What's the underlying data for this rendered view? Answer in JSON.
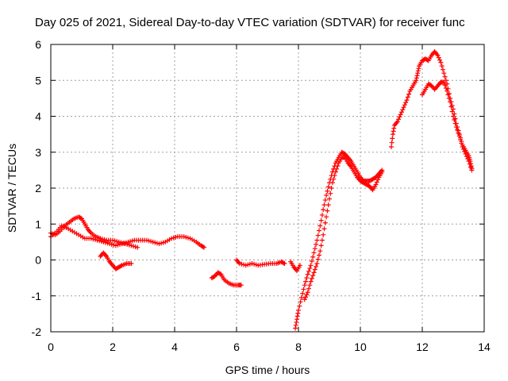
{
  "chart_data": {
    "type": "scatter",
    "title": "Day 025 of 2021, Sidereal Day-to-day VTEC variation (SDTVAR) for receiver func",
    "xlabel": "GPS time / hours",
    "ylabel": "SDTVAR / TECUs",
    "xlim": [
      0,
      14
    ],
    "ylim": [
      -2,
      6
    ],
    "x_ticks": [
      "0",
      "2",
      "4",
      "6",
      "8",
      "10",
      "12",
      "14"
    ],
    "y_ticks": [
      "-2",
      "-1",
      "0",
      "1",
      "2",
      "3",
      "4",
      "5",
      "6"
    ],
    "grid": true,
    "legend": "none",
    "marker": "plus",
    "color": "#ff0000",
    "segments": [
      [
        [
          0.0,
          0.75
        ],
        [
          0.15,
          0.7
        ],
        [
          0.3,
          0.8
        ],
        [
          0.45,
          0.95
        ],
        [
          0.6,
          1.05
        ],
        [
          0.75,
          1.15
        ],
        [
          0.9,
          1.2
        ],
        [
          1.0,
          1.15
        ],
        [
          1.1,
          1.0
        ],
        [
          1.2,
          0.85
        ],
        [
          1.3,
          0.75
        ],
        [
          1.45,
          0.65
        ],
        [
          1.6,
          0.6
        ],
        [
          1.8,
          0.55
        ],
        [
          2.0,
          0.55
        ],
        [
          2.2,
          0.5
        ],
        [
          2.4,
          0.45
        ],
        [
          2.6,
          0.4
        ],
        [
          2.8,
          0.35
        ]
      ],
      [
        [
          0.0,
          0.65
        ],
        [
          0.2,
          0.8
        ],
        [
          0.35,
          0.95
        ],
        [
          0.5,
          0.9
        ],
        [
          0.7,
          0.8
        ],
        [
          0.9,
          0.7
        ],
        [
          1.1,
          0.6
        ],
        [
          1.3,
          0.6
        ],
        [
          1.5,
          0.55
        ],
        [
          1.7,
          0.5
        ],
        [
          1.9,
          0.45
        ],
        [
          2.1,
          0.4
        ],
        [
          2.3,
          0.45
        ],
        [
          2.5,
          0.5
        ],
        [
          2.7,
          0.55
        ],
        [
          2.9,
          0.55
        ],
        [
          3.1,
          0.55
        ],
        [
          3.3,
          0.5
        ],
        [
          3.5,
          0.45
        ],
        [
          3.7,
          0.5
        ],
        [
          3.9,
          0.6
        ],
        [
          4.1,
          0.65
        ],
        [
          4.3,
          0.65
        ],
        [
          4.5,
          0.6
        ],
        [
          4.7,
          0.5
        ],
        [
          4.85,
          0.4
        ],
        [
          4.95,
          0.35
        ]
      ],
      [
        [
          1.6,
          0.1
        ],
        [
          1.7,
          0.2
        ],
        [
          1.8,
          0.1
        ],
        [
          1.9,
          -0.05
        ],
        [
          2.0,
          -0.15
        ],
        [
          2.1,
          -0.25
        ],
        [
          2.2,
          -0.2
        ],
        [
          2.3,
          -0.15
        ],
        [
          2.45,
          -0.1
        ],
        [
          2.6,
          -0.1
        ]
      ],
      [
        [
          5.2,
          -0.5
        ],
        [
          5.3,
          -0.45
        ],
        [
          5.4,
          -0.35
        ],
        [
          5.5,
          -0.4
        ],
        [
          5.6,
          -0.55
        ],
        [
          5.75,
          -0.65
        ],
        [
          5.9,
          -0.7
        ],
        [
          6.05,
          -0.7
        ],
        [
          6.15,
          -0.7
        ]
      ],
      [
        [
          6.0,
          0.0
        ],
        [
          6.1,
          -0.1
        ],
        [
          6.3,
          -0.15
        ],
        [
          6.5,
          -0.1
        ],
        [
          6.7,
          -0.15
        ],
        [
          6.9,
          -0.12
        ],
        [
          7.1,
          -0.1
        ],
        [
          7.3,
          -0.1
        ],
        [
          7.45,
          -0.05
        ],
        [
          7.55,
          -0.1
        ]
      ],
      [
        [
          7.75,
          -0.05
        ],
        [
          7.85,
          -0.2
        ],
        [
          7.95,
          -0.3
        ],
        [
          8.05,
          -0.15
        ]
      ],
      [
        [
          7.9,
          -1.9
        ],
        [
          7.95,
          -1.65
        ],
        [
          8.0,
          -1.4
        ],
        [
          8.1,
          -1.05
        ],
        [
          8.2,
          -0.7
        ],
        [
          8.3,
          -0.4
        ],
        [
          8.4,
          -0.15
        ],
        [
          8.5,
          0.2
        ],
        [
          8.6,
          0.55
        ],
        [
          8.7,
          0.95
        ],
        [
          8.8,
          1.4
        ],
        [
          8.9,
          1.8
        ],
        [
          9.0,
          2.15
        ],
        [
          9.1,
          2.45
        ],
        [
          9.2,
          2.7
        ],
        [
          9.3,
          2.85
        ],
        [
          9.4,
          3.0
        ],
        [
          9.5,
          2.95
        ],
        [
          9.6,
          2.85
        ],
        [
          9.7,
          2.75
        ],
        [
          9.8,
          2.6
        ],
        [
          9.9,
          2.45
        ],
        [
          10.0,
          2.3
        ],
        [
          10.1,
          2.2
        ],
        [
          10.2,
          2.2
        ],
        [
          10.3,
          2.2
        ],
        [
          10.4,
          2.25
        ],
        [
          10.5,
          2.3
        ],
        [
          10.6,
          2.4
        ],
        [
          10.7,
          2.5
        ]
      ],
      [
        [
          8.2,
          -1.1
        ],
        [
          8.3,
          -0.9
        ],
        [
          8.4,
          -0.6
        ],
        [
          8.5,
          -0.35
        ],
        [
          8.6,
          -0.1
        ],
        [
          8.7,
          0.25
        ],
        [
          8.8,
          0.7
        ],
        [
          8.9,
          1.2
        ],
        [
          9.0,
          1.7
        ],
        [
          9.1,
          2.15
        ],
        [
          9.2,
          2.45
        ],
        [
          9.3,
          2.7
        ],
        [
          9.4,
          2.85
        ],
        [
          9.5,
          2.85
        ],
        [
          9.6,
          2.7
        ],
        [
          9.7,
          2.6
        ],
        [
          9.8,
          2.45
        ],
        [
          9.9,
          2.3
        ],
        [
          10.0,
          2.2
        ],
        [
          10.1,
          2.15
        ],
        [
          10.2,
          2.1
        ],
        [
          10.3,
          2.05
        ],
        [
          10.4,
          1.95
        ],
        [
          10.5,
          2.1
        ],
        [
          10.6,
          2.3
        ],
        [
          10.7,
          2.45
        ]
      ],
      [
        [
          11.0,
          3.15
        ],
        [
          11.05,
          3.5
        ],
        [
          11.1,
          3.75
        ],
        [
          11.2,
          3.85
        ],
        [
          11.3,
          4.05
        ],
        [
          11.4,
          4.25
        ],
        [
          11.5,
          4.45
        ],
        [
          11.6,
          4.7
        ],
        [
          11.7,
          4.85
        ],
        [
          11.8,
          5.0
        ],
        [
          11.85,
          5.2
        ],
        [
          11.9,
          5.4
        ],
        [
          12.0,
          5.55
        ],
        [
          12.1,
          5.6
        ],
        [
          12.2,
          5.55
        ],
        [
          12.3,
          5.7
        ],
        [
          12.4,
          5.8
        ],
        [
          12.5,
          5.7
        ],
        [
          12.6,
          5.5
        ],
        [
          12.7,
          5.2
        ],
        [
          12.8,
          4.9
        ],
        [
          12.9,
          4.5
        ],
        [
          13.0,
          4.2
        ],
        [
          13.1,
          3.8
        ],
        [
          13.2,
          3.5
        ],
        [
          13.3,
          3.2
        ],
        [
          13.4,
          3.05
        ],
        [
          13.5,
          2.9
        ],
        [
          13.55,
          2.75
        ],
        [
          13.6,
          2.55
        ]
      ],
      [
        [
          12.0,
          4.6
        ],
        [
          12.1,
          4.75
        ],
        [
          12.2,
          4.9
        ],
        [
          12.3,
          4.85
        ],
        [
          12.4,
          4.75
        ],
        [
          12.5,
          4.85
        ],
        [
          12.6,
          4.95
        ],
        [
          12.7,
          4.95
        ],
        [
          12.8,
          4.7
        ],
        [
          12.9,
          4.4
        ],
        [
          13.0,
          4.0
        ],
        [
          13.1,
          3.7
        ],
        [
          13.2,
          3.45
        ],
        [
          13.3,
          3.15
        ],
        [
          13.4,
          2.95
        ],
        [
          13.5,
          2.75
        ],
        [
          13.6,
          2.5
        ]
      ]
    ]
  }
}
